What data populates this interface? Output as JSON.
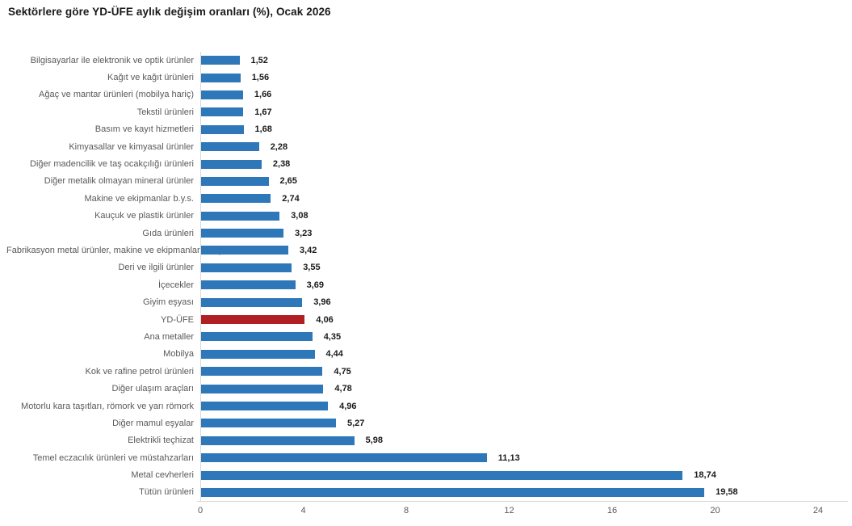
{
  "title": "Sektörlere göre YD-ÜFE aylık değişim oranları (%), Ocak 2026",
  "chart_data": {
    "type": "bar",
    "orientation": "horizontal",
    "title": "Sektörlere göre YD-ÜFE aylık değişim oranları (%), Ocak 2026",
    "xlabel": "",
    "ylabel": "",
    "xlim": [
      0,
      24
    ],
    "x_ticks": [
      "0",
      "4",
      "8",
      "12",
      "16",
      "20",
      "24"
    ],
    "x_tick_values": [
      0,
      4,
      8,
      12,
      16,
      20,
      24
    ],
    "grid": false,
    "legend": false,
    "highlight_category": "YD-ÜFE",
    "categories": [
      "Bilgisayarlar ile elektronik ve optik ürünler",
      "Kağıt ve kağıt ürünleri",
      "Ağaç ve mantar ürünleri (mobilya hariç)",
      "Tekstil ürünleri",
      "Basım ve kayıt hizmetleri",
      "Kimyasallar ve kimyasal ürünler",
      "Diğer madencilik ve taş ocakçılığı ürünleri",
      "Diğer metalik olmayan mineral ürünler",
      "Makine ve ekipmanlar b.y.s.",
      "Kauçuk ve plastik ürünler",
      "Gıda ürünleri",
      "Fabrikasyon metal ürünler, makine ve ekipmanlar hariç",
      "Deri ve ilgili ürünler",
      "İçecekler",
      "Giyim eşyası",
      "YD-ÜFE",
      "Ana metaller",
      "Mobilya",
      "Kok ve rafine petrol ürünleri",
      "Diğer ulaşım araçları",
      "Motorlu kara taşıtları, römork ve yarı römork",
      "Diğer mamul eşyalar",
      "Elektrikli teçhizat",
      "Temel eczacılık ürünleri ve müstahzarları",
      "Metal cevherleri",
      "Tütün ürünleri"
    ],
    "values": [
      1.52,
      1.56,
      1.66,
      1.67,
      1.68,
      2.28,
      2.38,
      2.65,
      2.74,
      3.08,
      3.23,
      3.42,
      3.55,
      3.69,
      3.96,
      4.06,
      4.35,
      4.44,
      4.75,
      4.78,
      4.96,
      5.27,
      5.98,
      11.13,
      18.74,
      19.58
    ],
    "value_labels": [
      "1,52",
      "1,56",
      "1,66",
      "1,67",
      "1,68",
      "2,28",
      "2,38",
      "2,65",
      "2,74",
      "3,08",
      "3,23",
      "3,42",
      "3,55",
      "3,69",
      "3,96",
      "4,06",
      "4,35",
      "4,44",
      "4,75",
      "4,78",
      "4,96",
      "5,27",
      "5,98",
      "11,13",
      "18,74",
      "19,58"
    ],
    "colors": {
      "bar": "#2E77B8",
      "highlight_bar": "#B01F24",
      "axis_line": "#D9D9D9",
      "category_text": "#595959",
      "tick_text": "#595959",
      "value_text": "#1A1A1A",
      "title_text": "#1A1A1A",
      "background": "#FFFFFF"
    }
  }
}
